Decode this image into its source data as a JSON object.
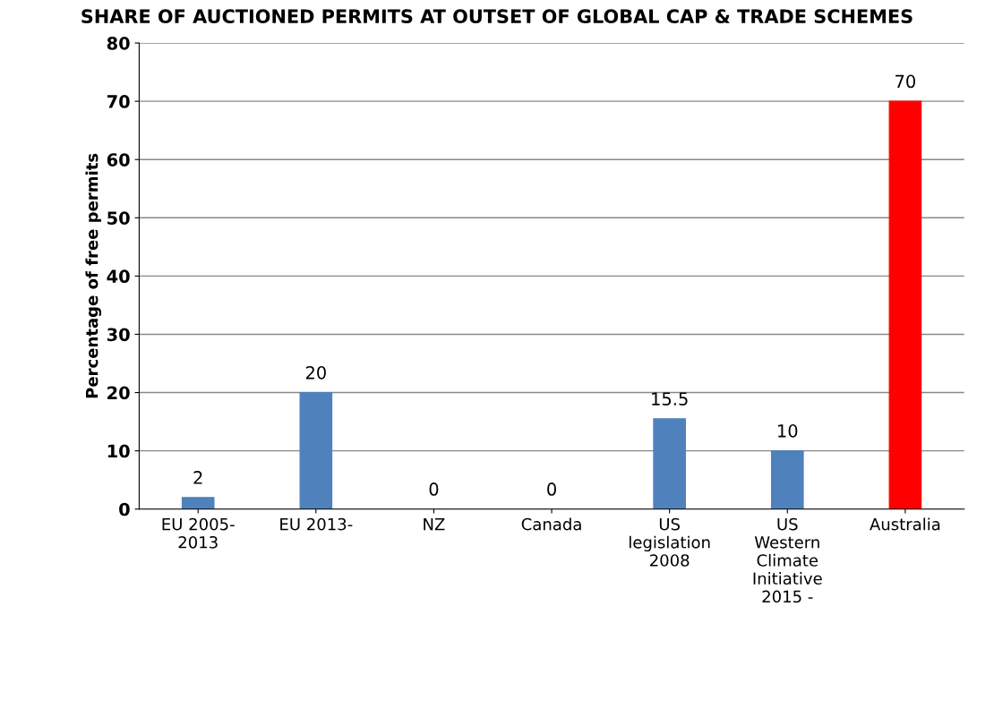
{
  "chart_data": {
    "type": "bar",
    "title": "SHARE OF AUCTIONED PERMITS AT OUTSET OF GLOBAL CAP & TRADE SCHEMES",
    "ylabel": "Percentage of free permits",
    "categories": [
      "EU 2005-\n2013",
      "EU 2013-",
      "NZ",
      "Canada",
      "US\nlegislation\n2008",
      "US\nWestern\nClimate\nInitiative\n2015 -",
      "Australia"
    ],
    "values": [
      2,
      20,
      0,
      0,
      15.5,
      10,
      70
    ],
    "colors": [
      "#4f81bd",
      "#4f81bd",
      "#4f81bd",
      "#4f81bd",
      "#4f81bd",
      "#4f81bd",
      "#ff0000"
    ],
    "ylim": [
      0,
      80
    ],
    "yticks": [
      0,
      10,
      20,
      30,
      40,
      50,
      60,
      70,
      80
    ],
    "grid": "y",
    "data_labels": true
  }
}
